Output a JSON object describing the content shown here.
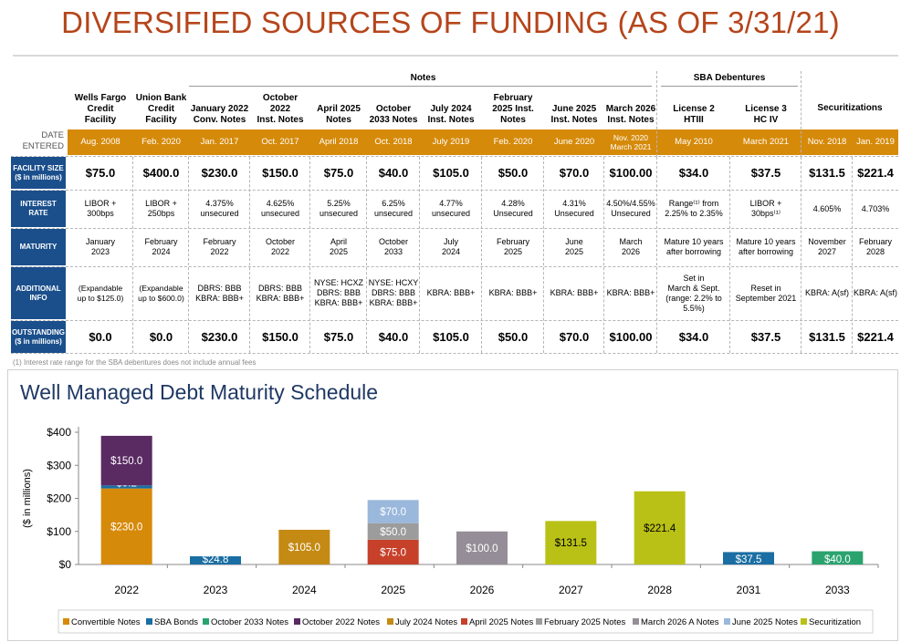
{
  "title": "DIVERSIFIED SOURCES OF FUNDING (AS OF 3/31/21)",
  "table": {
    "group_notes": "Notes",
    "group_sba": "SBA Debentures",
    "date_entered_label": "DATE\nENTERED",
    "row_labels": {
      "facility_size": "FACILITY SIZE\n($ in millions)",
      "interest_rate": "INTEREST\nRATE",
      "maturity": "MATURITY",
      "additional_info": "ADDITIONAL\nINFO",
      "outstanding": "OUTSTANDING\n($ in millions)"
    },
    "columns": [
      {
        "header": "Wells Fargo\nCredit\nFacility",
        "date": "Aug. 2008",
        "facility_size": "$75.0",
        "interest_rate": "LIBOR +\n300bps",
        "maturity": "January\n2023",
        "additional_info": "(Expandable\nup to $125.0)",
        "outstanding": "$0.0"
      },
      {
        "header": "Union Bank\nCredit\nFacility",
        "date": "Feb. 2020",
        "facility_size": "$400.0",
        "interest_rate": "LIBOR +\n250bps",
        "maturity": "February\n2024",
        "additional_info": "(Expandable\nup to $600.0)",
        "outstanding": "$0.0"
      },
      {
        "header": "January 2022\nConv. Notes",
        "date": "Jan. 2017",
        "facility_size": "$230.0",
        "interest_rate": "4.375%\nunsecured",
        "maturity": "February\n2022",
        "additional_info": "DBRS: BBB\nKBRA: BBB+",
        "outstanding": "$230.0"
      },
      {
        "header": "October\n2022\nInst. Notes",
        "date": "Oct. 2017",
        "facility_size": "$150.0",
        "interest_rate": "4.625%\nunsecured",
        "maturity": "October\n2022",
        "additional_info": "DBRS: BBB\nKBRA: BBB+",
        "outstanding": "$150.0"
      },
      {
        "header": "April 2025\nNotes",
        "date": "April 2018",
        "facility_size": "$75.0",
        "interest_rate": "5.25%\nunsecured",
        "maturity": "April\n2025",
        "additional_info": "NYSE: HCXZ\nDBRS: BBB\nKBRA: BBB+",
        "outstanding": "$75.0"
      },
      {
        "header": "October\n2033 Notes",
        "date": "Oct. 2018",
        "facility_size": "$40.0",
        "interest_rate": "6.25%\nunsecured",
        "maturity": "October\n2033",
        "additional_info": "NYSE: HCXY\nDBRS: BBB\nKBRA: BBB+",
        "outstanding": "$40.0"
      },
      {
        "header": "July 2024\nInst. Notes",
        "date": "July 2019",
        "facility_size": "$105.0",
        "interest_rate": "4.77%\nunsecured",
        "maturity": "July\n2024",
        "additional_info": "KBRA: BBB+",
        "outstanding": "$105.0"
      },
      {
        "header": "February\n2025 Inst.\nNotes",
        "date": "Feb. 2020",
        "facility_size": "$50.0",
        "interest_rate": "4.28%\nUnsecured",
        "maturity": "February\n2025",
        "additional_info": "KBRA: BBB+",
        "outstanding": "$50.0"
      },
      {
        "header": "June 2025\nInst. Notes",
        "date": "June 2020",
        "facility_size": "$70.0",
        "interest_rate": "4.31%\nUnsecured",
        "maturity": "June\n2025",
        "additional_info": "KBRA: BBB+",
        "outstanding": "$70.0"
      },
      {
        "header": "March 2026\nInst. Notes",
        "date": "Nov. 2020\nMarch 2021",
        "facility_size": "$100.00",
        "interest_rate": "4.50%/4.55%\nUnsecured",
        "maturity": "March\n2026",
        "additional_info": "KBRA: BBB+",
        "outstanding": "$100.00"
      },
      {
        "header": "License 2\nHTIII",
        "date": "May 2010",
        "facility_size": "$34.0",
        "interest_rate": "Range⁽¹⁾ from\n2.25% to 2.35%",
        "maturity": "Mature 10 years\nafter borrowing",
        "additional_info": "Set in\nMarch & Sept.\n(range: 2.2% to\n5.5%)",
        "outstanding": "$34.0"
      },
      {
        "header": "License 3\nHC IV",
        "date": "March 2021",
        "facility_size": "$37.5",
        "interest_rate": "LIBOR +\n30bps⁽¹⁾",
        "maturity": "Mature 10 years\nafter borrowing",
        "additional_info": "Reset in\nSeptember 2021",
        "outstanding": "$37.5"
      },
      {
        "header": "",
        "date": "Nov. 2018",
        "facility_size": "$131.5",
        "interest_rate": "4.605%",
        "maturity": "November\n2027",
        "additional_info": "KBRA: A(sf)",
        "outstanding": "$131.5"
      },
      {
        "header": "",
        "date": "Jan. 2019",
        "facility_size": "$221.4",
        "interest_rate": "4.703%",
        "maturity": "February\n2028",
        "additional_info": "KBRA: A(sf)",
        "outstanding": "$221.4"
      }
    ],
    "securitizations_header": "Securitizations",
    "colors": {
      "date_bar": "#d68a0a",
      "row_label_bg": "#1b4f8c"
    }
  },
  "footnote": "(1)     Interest rate range for the SBA debentures does not include annual fees",
  "chart_title": "Well Managed Debt Maturity Schedule",
  "chart_data": {
    "type": "bar",
    "stacked": true,
    "title": "Well Managed Debt Maturity Schedule",
    "ylabel": "($ in millions)",
    "ylim": [
      0,
      400
    ],
    "yticks": [
      "$0",
      "$100",
      "$200",
      "$300",
      "$400"
    ],
    "categories": [
      "2022",
      "2023",
      "2024",
      "2025",
      "2026",
      "2027",
      "2028",
      "2031",
      "2033"
    ],
    "series": [
      {
        "name": "Convertible Notes",
        "color": "#d68a0a",
        "values": [
          230,
          0,
          0,
          0,
          0,
          0,
          0,
          0,
          0
        ],
        "labels": [
          "$230.0",
          "",
          "",
          "",
          "",
          "",
          "",
          "",
          ""
        ]
      },
      {
        "name": "SBA Bonds",
        "color": "#1a6ea3",
        "values": [
          9.2,
          24.8,
          0,
          0,
          0,
          0,
          0,
          37.5,
          0
        ],
        "labels": [
          "$9.2",
          "$24.8",
          "",
          "",
          "",
          "",
          "",
          "$37.5",
          ""
        ]
      },
      {
        "name": "October 2033 Notes",
        "color": "#2aa36f",
        "values": [
          0,
          0,
          0,
          0,
          0,
          0,
          0,
          0,
          40
        ],
        "labels": [
          "",
          "",
          "",
          "",
          "",
          "",
          "",
          "",
          "$40.0"
        ]
      },
      {
        "name": "October 2022 Notes",
        "color": "#5a2a63",
        "values": [
          150,
          0,
          0,
          0,
          0,
          0,
          0,
          0,
          0
        ],
        "labels": [
          "$150.0",
          "",
          "",
          "",
          "",
          "",
          "",
          "",
          ""
        ]
      },
      {
        "name": "July 2024 Notes",
        "color": "#c48a14",
        "values": [
          0,
          0,
          105,
          0,
          0,
          0,
          0,
          0,
          0
        ],
        "labels": [
          "",
          "",
          "$105.0",
          "",
          "",
          "",
          "",
          "",
          ""
        ]
      },
      {
        "name": "April 2025 Notes",
        "color": "#c7402a",
        "values": [
          0,
          0,
          0,
          75,
          0,
          0,
          0,
          0,
          0
        ],
        "labels": [
          "",
          "",
          "",
          "$75.0",
          "",
          "",
          "",
          "",
          ""
        ]
      },
      {
        "name": "February 2025 Notes",
        "color": "#9c9c9c",
        "values": [
          0,
          0,
          0,
          50,
          0,
          0,
          0,
          0,
          0
        ],
        "labels": [
          "",
          "",
          "",
          "$50.0",
          "",
          "",
          "",
          "",
          ""
        ]
      },
      {
        "name": "March 2026 A Notes",
        "color": "#958d97",
        "values": [
          0,
          0,
          0,
          0,
          100,
          0,
          0,
          0,
          0
        ],
        "labels": [
          "",
          "",
          "",
          "",
          "$100.0",
          "",
          "",
          "",
          ""
        ]
      },
      {
        "name": "June 2025 Notes",
        "color": "#9ab7dc",
        "values": [
          0,
          0,
          0,
          70,
          0,
          0,
          0,
          0,
          0
        ],
        "labels": [
          "",
          "",
          "",
          "$70.0",
          "",
          "",
          "",
          "",
          ""
        ]
      },
      {
        "name": "Securitization",
        "color": "#b9c116",
        "values": [
          0,
          0,
          0,
          0,
          0,
          131.5,
          221.4,
          0,
          0
        ],
        "labels": [
          "",
          "",
          "",
          "",
          "",
          "$131.5",
          "$221.4",
          "",
          ""
        ]
      }
    ],
    "legend_position": "bottom",
    "grid": false
  }
}
